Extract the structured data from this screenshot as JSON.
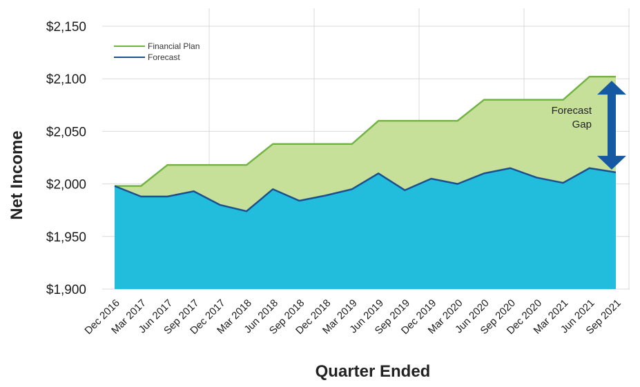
{
  "chart_data": {
    "type": "area",
    "title": "",
    "xlabel": "Quarter Ended",
    "ylabel": "Net Income",
    "categories": [
      "Dec 2016",
      "Mar 2017",
      "Jun 2017",
      "Sep 2017",
      "Dec 2017",
      "Mar 2018",
      "Jun 2018",
      "Sep 2018",
      "Dec 2018",
      "Mar 2019",
      "Jun 2019",
      "Sep 2019",
      "Dec 2019",
      "Mar 2020",
      "Jun 2020",
      "Sep 2020",
      "Dec 2020",
      "Mar 2021",
      "Jun 2021",
      "Sep 2021"
    ],
    "series": [
      {
        "name": "Financial Plan",
        "color": "#72b443",
        "fill": "#c6e09a",
        "values": [
          1998,
          1998,
          2018,
          2018,
          2018,
          2018,
          2038,
          2038,
          2038,
          2038,
          2060,
          2060,
          2060,
          2060,
          2080,
          2080,
          2080,
          2080,
          2102,
          2102
        ]
      },
      {
        "name": "Forecast",
        "color": "#1d4f8c",
        "fill": "#22bcdc",
        "values": [
          1998,
          1988,
          1988,
          1993,
          1980,
          1974,
          1995,
          1984,
          1989,
          1995,
          2010,
          1994,
          2005,
          2000,
          2010,
          2015,
          2006,
          2001,
          2015,
          2011
        ]
      }
    ],
    "yticks": [
      "$1,900",
      "$1,950",
      "$2,000",
      "$2,050",
      "$2,100",
      "$2,150"
    ],
    "ylim": [
      1900,
      2150
    ],
    "grid": true,
    "legend_position": "top-left",
    "annotation": {
      "lines": [
        "Forecast",
        "Gap"
      ],
      "arrow_color": "#1559a3",
      "from_value": 2011,
      "to_value": 2102
    }
  }
}
